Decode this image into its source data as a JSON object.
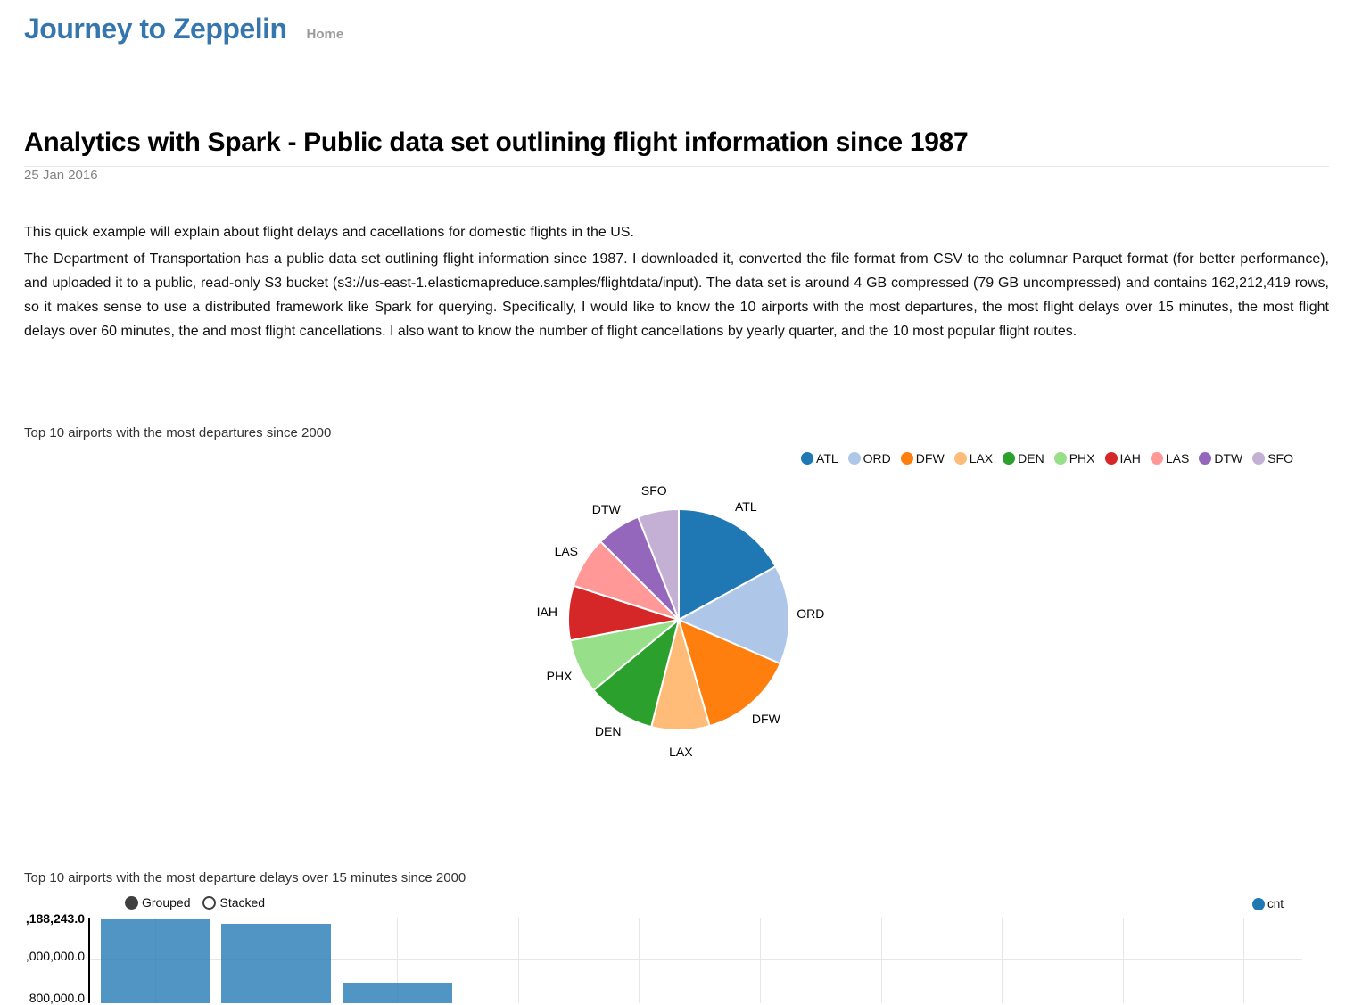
{
  "site": {
    "title": "Journey to Zeppelin",
    "nav_home": "Home"
  },
  "post": {
    "title": "Analytics with Spark - Public data set outlining flight information since 1987",
    "date": "25 Jan 2016",
    "paragraphs": [
      "This quick example will explain about flight delays and cacellations for domestic flights in the US.",
      "The Department of Transportation has a public data set outlining flight information since 1987. I downloaded it, converted the file format from CSV to the columnar Parquet format (for better performance), and uploaded it to a public, read-only S3 bucket (s3://us-east-1.elasticmapreduce.samples/flightdata/input). The data set is around 4 GB compressed (79 GB uncompressed) and contains 162,212,419 rows, so it makes sense to use a distributed framework like Spark for querying. Specifically, I would like to know the 10 airports with the most departures, the most flight delays over 15 minutes, the most flight delays over 60 minutes, the and most flight cancellations. I also want to know the number of flight cancellations by yearly quarter, and the 10 most popular flight routes."
    ]
  },
  "colors": {
    "site_title": "#3476ad",
    "nav_link": "#9b9b9b",
    "date_text": "#828282",
    "title_rule": "#e8e8e8",
    "grid": "#e7e7e7",
    "bar_fill": "rgba(31,119,180,0.78)",
    "series_cnt": "#1f77b4"
  },
  "chart_data": [
    {
      "type": "pie",
      "title": "Top 10 airports with the most departures since 2000",
      "labels": [
        "ATL",
        "ORD",
        "DFW",
        "LAX",
        "DEN",
        "PHX",
        "IAH",
        "LAS",
        "DTW",
        "SFO"
      ],
      "values_pct_estimated": [
        17,
        14.5,
        14,
        8.5,
        10,
        8,
        8,
        7.5,
        6.5,
        6
      ],
      "colors": [
        "#1f77b4",
        "#aec7e8",
        "#ff7f0e",
        "#ffbb78",
        "#2ca02c",
        "#98df8a",
        "#d62728",
        "#ff9896",
        "#9467bd",
        "#c5b0d5"
      ],
      "legend_position": "top-right",
      "labels_outside": true,
      "slice_stroke": "#ffffff"
    },
    {
      "type": "bar",
      "title": "Top 10 airports with the most departure delays over 15 minutes since 2000",
      "controls": [
        "Grouped",
        "Stacked"
      ],
      "controls_selected": "Grouped",
      "legend": [
        {
          "name": "cnt",
          "color": "#1f77b4"
        }
      ],
      "series": [
        {
          "name": "cnt",
          "values_visible": [
            1188243,
            1167000,
            883000
          ]
        }
      ],
      "y_ticks_visible": [
        {
          "label": ",188,243.0",
          "value": 1188243,
          "bold": true
        },
        {
          "label": ",000,000.0",
          "value": 1000000,
          "bold": false
        },
        {
          "label": "800,000.0",
          "value": 800000,
          "bold": false
        }
      ],
      "y_max": 1188243,
      "grid": true,
      "num_category_bands": 10,
      "note": "Chart is cut off by the bottom of the viewport; only the tops of the first three bars and the upper y-axis region are visible. X-axis labels not visible."
    }
  ]
}
